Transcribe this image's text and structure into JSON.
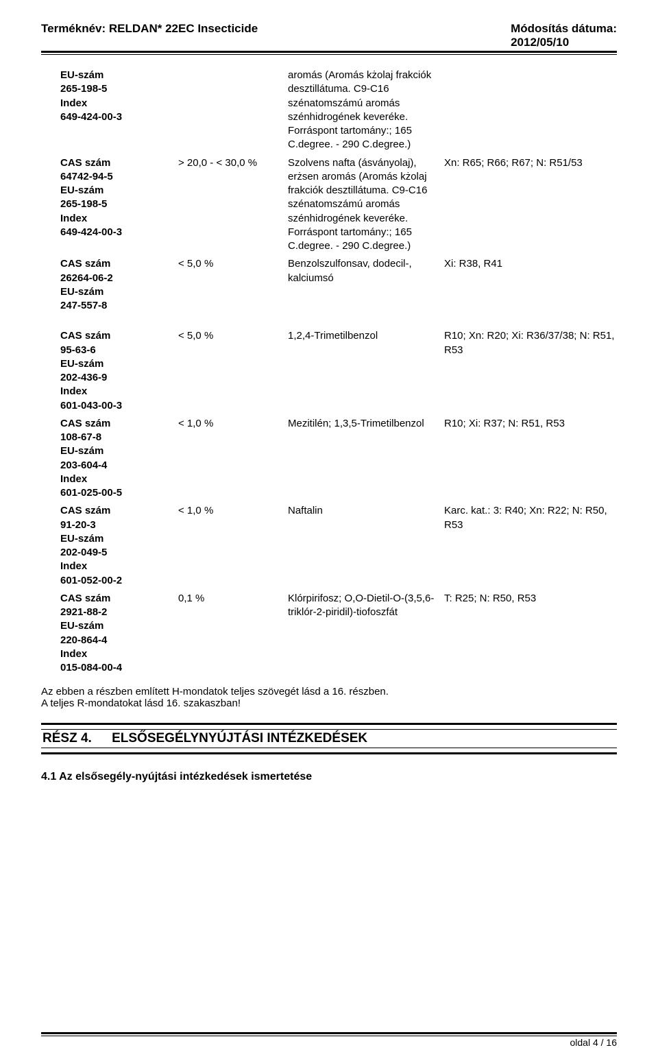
{
  "header": {
    "left": "Terméknév: RELDAN* 22EC Insecticide",
    "right": "Módosítás dátuma:\n2012/05/10"
  },
  "rows": [
    {
      "a": "EU-szám\n265-198-5\nIndex\n649-424-00-3",
      "b": "",
      "c": "aromás (Aromás kżolaj frakciók desztillátuma. C9-C16 szénatomszámú aromás szénhidrogének keveréke. Forráspont tartomány:; 165 C.degree. - 290 C.degree.)",
      "d": ""
    },
    {
      "a": "CAS szám\n64742-94-5\nEU-szám\n265-198-5\nIndex\n649-424-00-3",
      "b": "> 20,0 - < 30,0 %",
      "c": "Szolvens nafta (ásványolaj), erżsen aromás (Aromás kżolaj frakciók desztillátuma. C9-C16 szénatomszámú aromás szénhidrogének keveréke. Forráspont tartomány:; 165 C.degree. - 290 C.degree.)",
      "d": "Xn: R65; R66; R67; N: R51/53"
    },
    {
      "a": "CAS szám\n26264-06-2\nEU-szám\n247-557-8",
      "b": "< 5,0 %",
      "c": "Benzolszulfonsav, dodecil-, kalciumsó",
      "d": "Xi: R38, R41"
    },
    {
      "a": "CAS szám\n95-63-6\nEU-szám\n202-436-9\nIndex\n601-043-00-3",
      "b": "< 5,0 %",
      "c": "1,2,4-Trimetilbenzol",
      "d": "R10; Xn: R20; Xi: R36/37/38; N: R51, R53"
    },
    {
      "a": "CAS szám\n108-67-8\nEU-szám\n203-604-4\nIndex\n601-025-00-5",
      "b": "< 1,0 %",
      "c": "Mezitilén; 1,3,5-Trimetilbenzol",
      "d": "R10; Xi: R37; N: R51, R53"
    },
    {
      "a": "CAS szám\n91-20-3\nEU-szám\n202-049-5\nIndex\n601-052-00-2",
      "b": "< 1,0 %",
      "c": "Naftalin",
      "d": "Karc. kat.: 3: R40; Xn: R22; N: R50, R53"
    },
    {
      "a": "CAS szám\n2921-88-2\nEU-szám\n220-864-4\nIndex\n015-084-00-4",
      "b": "0,1 %",
      "c": "Klórpirifosz; O,O-Dietil-O-(3,5,6-triklór-2-piridil)-tiofoszfát",
      "d": "T: R25; N: R50, R53"
    }
  ],
  "note1": "Az ebben a részben említett H-mondatok teljes szövegét lásd a 16. részben.",
  "note2": "A teljes R-mondatokat lásd 16. szakaszban!",
  "section": {
    "label": "RÉSZ 4.",
    "title": "ELSŐSEGÉLYNYÚJTÁSI INTÉZKEDÉSEK"
  },
  "sub": "4.1 Az elsősegély-nyújtási intézkedések ismertetése",
  "footer": "oldal 4 / 16"
}
